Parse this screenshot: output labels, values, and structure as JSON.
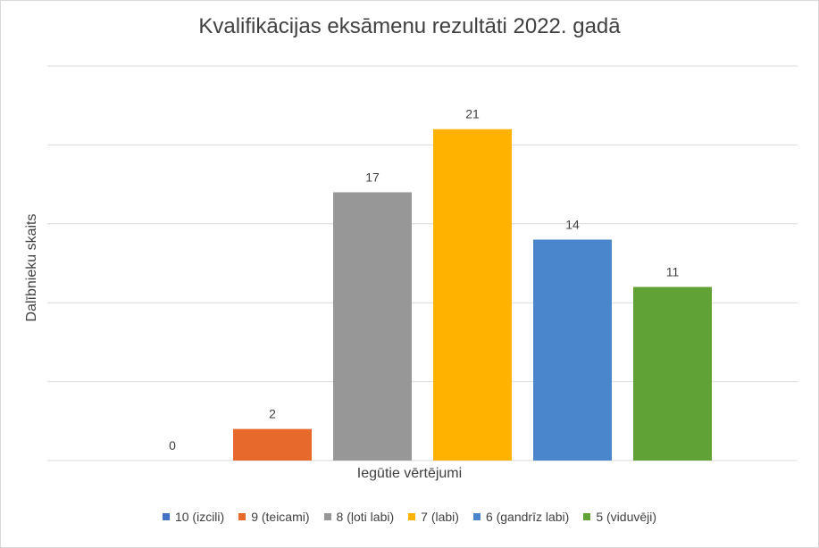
{
  "chart_data": {
    "type": "bar",
    "title": "Kvalifikācijas eksāmenu rezultāti 2022. gadā",
    "xlabel": "Iegūtie vērtējumi",
    "ylabel": "Dalībnieku skaits",
    "ylim": [
      0,
      25
    ],
    "ytick_step": 5,
    "grid": true,
    "legend_position": "bottom",
    "series": [
      {
        "name": "10 (izcili)",
        "value": 0,
        "color": "#4472c4"
      },
      {
        "name": "9 (teicami)",
        "value": 2,
        "color": "#e7692b"
      },
      {
        "name": "8 (ļoti labi)",
        "value": 17,
        "color": "#979797"
      },
      {
        "name": "7 (labi)",
        "value": 21,
        "color": "#ffb300"
      },
      {
        "name": "6 (gandrīz labi)",
        "value": 14,
        "color": "#4a86cc"
      },
      {
        "name": "5 (viduvēji)",
        "value": 11,
        "color": "#61a236"
      }
    ]
  }
}
